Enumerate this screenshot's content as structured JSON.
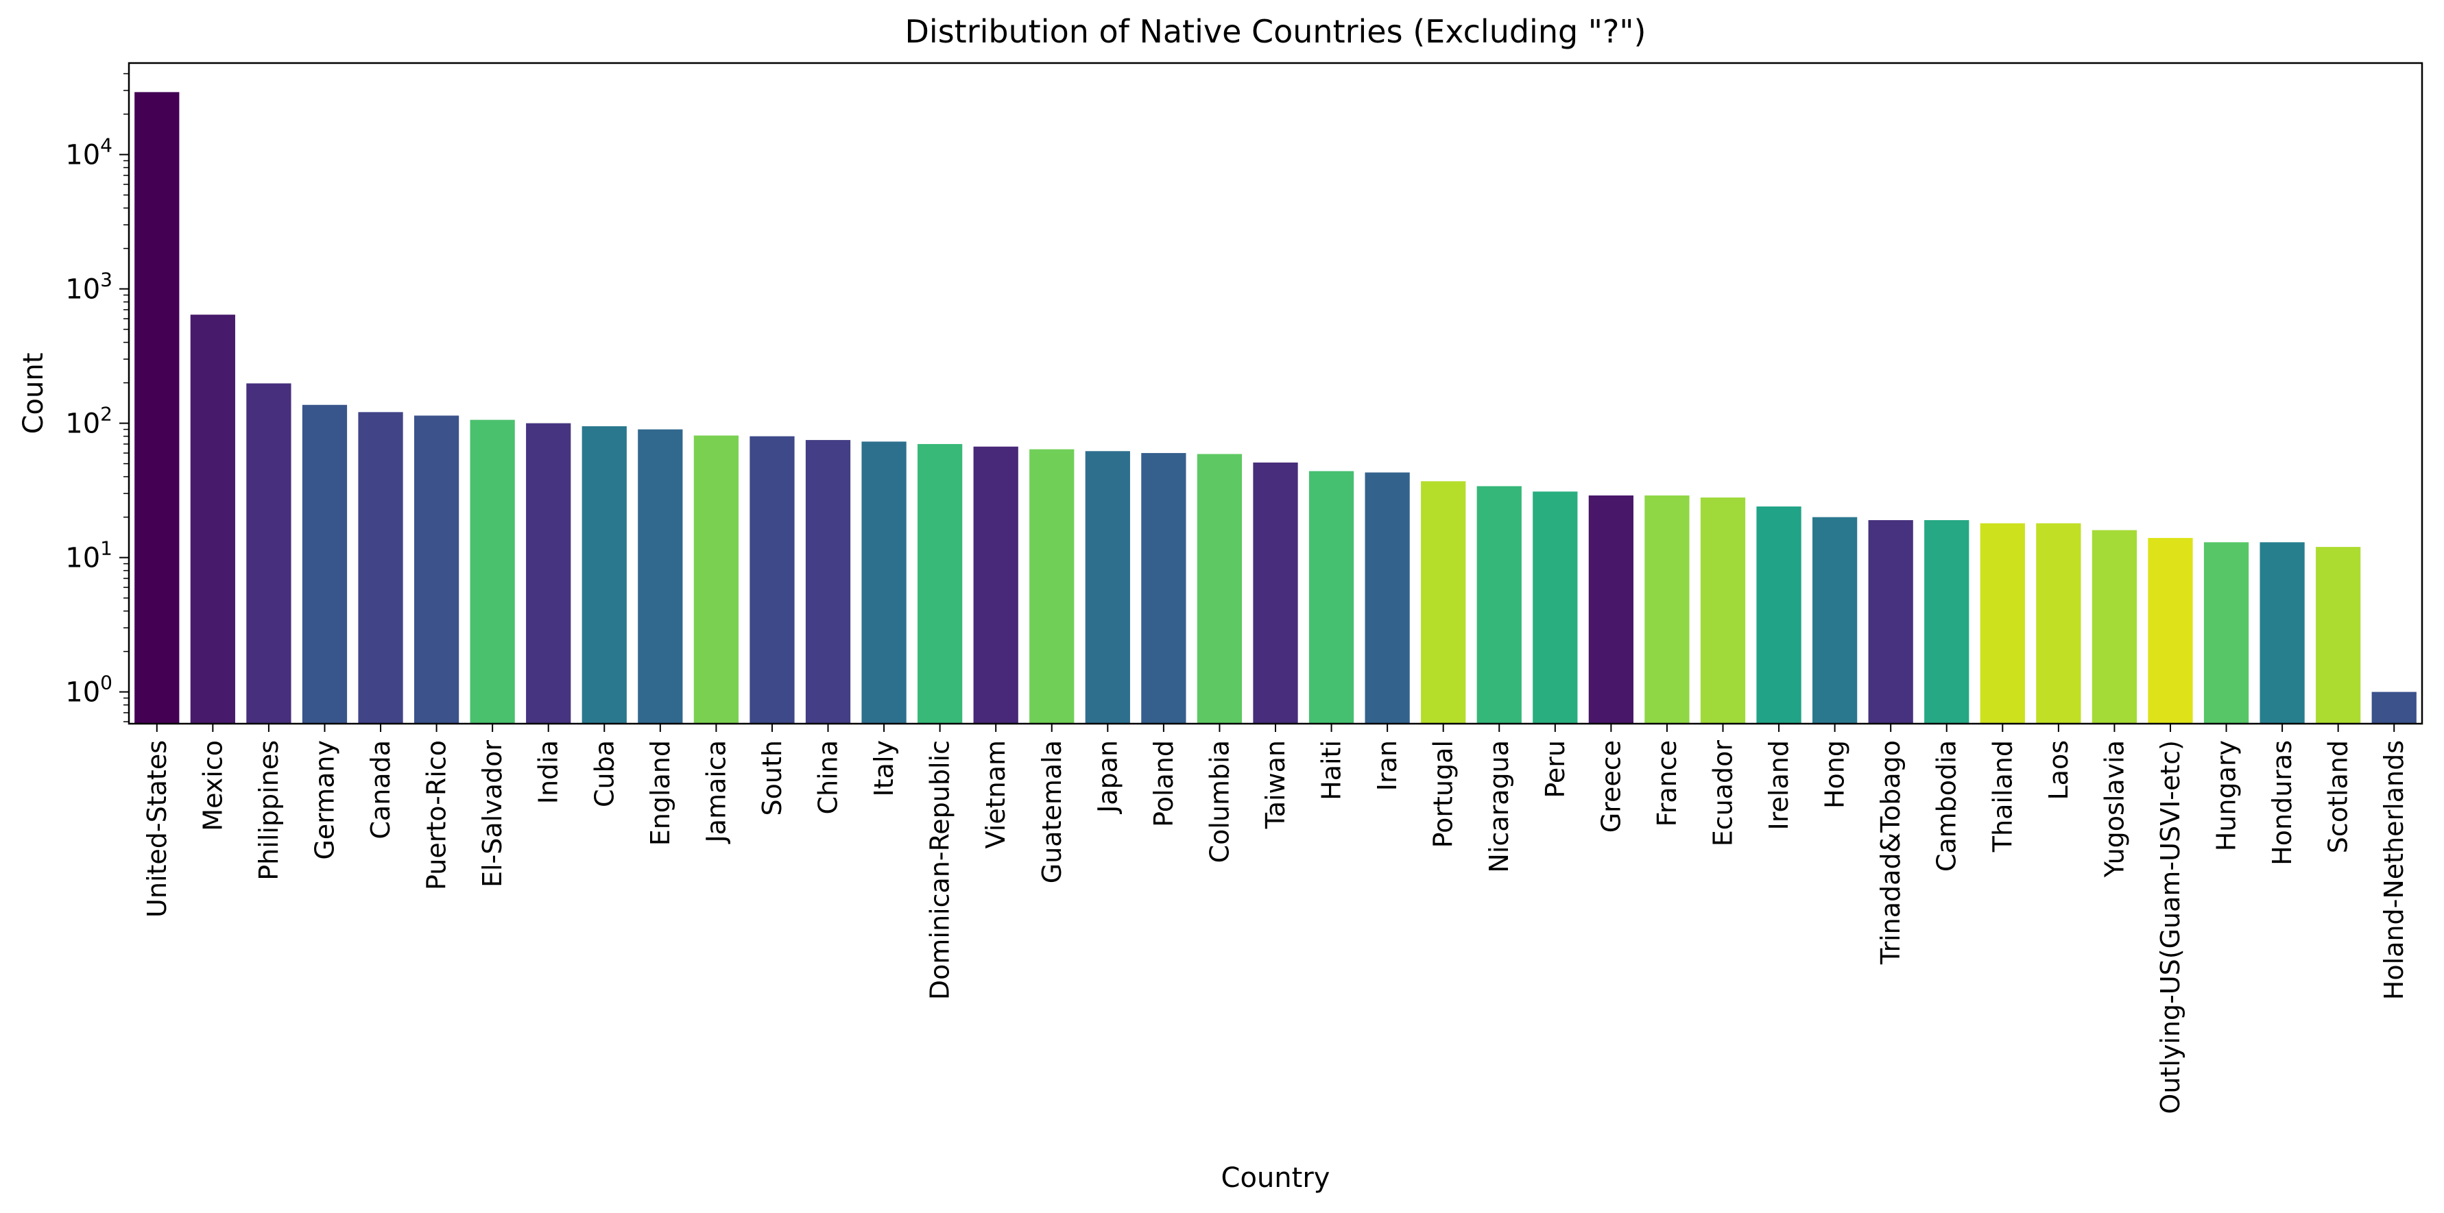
{
  "chart_data": {
    "type": "bar",
    "title": "Distribution of Native Countries (Excluding \"?\")",
    "xlabel": "Country",
    "ylabel": "Count",
    "yscale": "log",
    "ylim": [
      0.58,
      48000
    ],
    "yticks": [
      {
        "base": "10",
        "exp": "0",
        "value": 1
      },
      {
        "base": "10",
        "exp": "1",
        "value": 10
      },
      {
        "base": "10",
        "exp": "2",
        "value": 100
      },
      {
        "base": "10",
        "exp": "3",
        "value": 1000
      },
      {
        "base": "10",
        "exp": "4",
        "value": 10000
      }
    ],
    "grid": false,
    "categories": [
      "United-States",
      "Mexico",
      "Philippines",
      "Germany",
      "Canada",
      "Puerto-Rico",
      "El-Salvador",
      "India",
      "Cuba",
      "England",
      "Jamaica",
      "South",
      "China",
      "Italy",
      "Dominican-Republic",
      "Vietnam",
      "Guatemala",
      "Japan",
      "Poland",
      "Columbia",
      "Taiwan",
      "Haiti",
      "Iran",
      "Portugal",
      "Nicaragua",
      "Peru",
      "Greece",
      "France",
      "Ecuador",
      "Ireland",
      "Hong",
      "Trinadad&Tobago",
      "Cambodia",
      "Thailand",
      "Laos",
      "Yugoslavia",
      "Outlying-US(Guam-USVI-etc)",
      "Hungary",
      "Honduras",
      "Scotland",
      "Holand-Netherlands"
    ],
    "values": [
      29170,
      643,
      198,
      137,
      121,
      114,
      106,
      100,
      95,
      90,
      81,
      80,
      75,
      73,
      70,
      67,
      64,
      62,
      60,
      59,
      51,
      44,
      43,
      37,
      34,
      31,
      29,
      29,
      28,
      24,
      20,
      19,
      19,
      18,
      18,
      16,
      14,
      13,
      13,
      12,
      1
    ],
    "colors": [
      "#440154",
      "#481a6c",
      "#472f7d",
      "#39568c",
      "#414487",
      "#3b528b",
      "#4ac16d",
      "#463480",
      "#2a788e",
      "#31688e",
      "#7ad151",
      "#3e4989",
      "#433e85",
      "#2d708e",
      "#38b977",
      "#482878",
      "#70cf57",
      "#2e6f8e",
      "#355f8d",
      "#5ec962",
      "#472d7b",
      "#45bf70",
      "#33638d",
      "#b5de2b",
      "#35b779",
      "#29af7f",
      "#481769",
      "#8fd744",
      "#9fda3a",
      "#20a386",
      "#2a788e",
      "#46327e",
      "#26a884",
      "#cde11d",
      "#c0df25",
      "#a5db36",
      "#dde318",
      "#56c667",
      "#277f8e",
      "#addc30",
      "#3b528b"
    ]
  }
}
